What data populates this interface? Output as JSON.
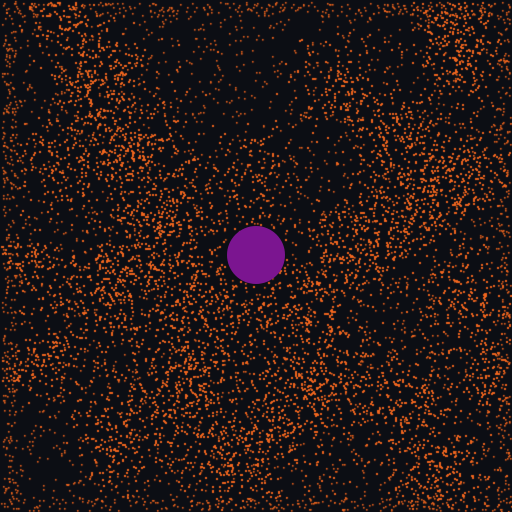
{
  "scene": {
    "background_color": "#0c0e14",
    "particle_color": "#f0651e",
    "player_color": "#7b1590",
    "player_shape": "circle",
    "particle_shape": "dot"
  }
}
